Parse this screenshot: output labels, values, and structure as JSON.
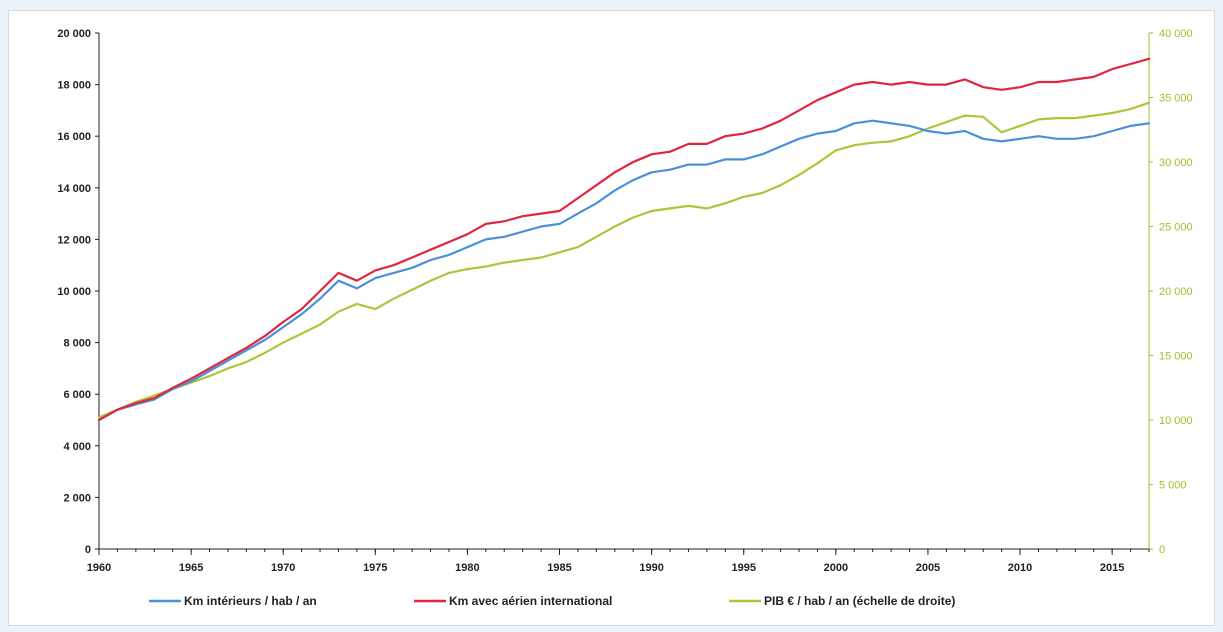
{
  "chart_data": {
    "type": "line",
    "title": "",
    "xlabel": "",
    "ylabel": "",
    "xlim": [
      1960,
      2017
    ],
    "ylim_left": [
      0,
      20000
    ],
    "ylim_right": [
      0,
      40000
    ],
    "grid": false,
    "legend_position": "bottom",
    "x_ticks": [
      1960,
      1965,
      1970,
      1975,
      1980,
      1985,
      1990,
      1995,
      2000,
      2005,
      2010,
      2015
    ],
    "x_tick_labels": [
      "1960",
      "1965",
      "1970",
      "1975",
      "1980",
      "1985",
      "1990",
      "1995",
      "2000",
      "2005",
      "2010",
      "2015"
    ],
    "y_left_ticks": [
      0,
      2000,
      4000,
      6000,
      8000,
      10000,
      12000,
      14000,
      16000,
      18000,
      20000
    ],
    "y_left_tick_labels": [
      "0",
      "2 000",
      "4 000",
      "6 000",
      "8 000",
      "10 000",
      "12 000",
      "14 000",
      "16 000",
      "18 000",
      "20 000"
    ],
    "y_right_ticks": [
      0,
      5000,
      10000,
      15000,
      20000,
      25000,
      30000,
      35000,
      40000
    ],
    "y_right_tick_labels": [
      "0",
      "5 000",
      "10 000",
      "15 000",
      "20 000",
      "25 000",
      "30 000",
      "35 000",
      "40 000"
    ],
    "x": [
      1960,
      1961,
      1962,
      1963,
      1964,
      1965,
      1966,
      1967,
      1968,
      1969,
      1970,
      1971,
      1972,
      1973,
      1974,
      1975,
      1976,
      1977,
      1978,
      1979,
      1980,
      1981,
      1982,
      1983,
      1984,
      1985,
      1986,
      1987,
      1988,
      1989,
      1990,
      1991,
      1992,
      1993,
      1994,
      1995,
      1996,
      1997,
      1998,
      1999,
      2000,
      2001,
      2002,
      2003,
      2004,
      2005,
      2006,
      2007,
      2008,
      2009,
      2010,
      2011,
      2012,
      2013,
      2014,
      2015,
      2016,
      2017
    ],
    "series": [
      {
        "name": "Km intérieurs / hab / an",
        "axis": "left",
        "color": "#4a90d9",
        "values": [
          5000,
          5400,
          5600,
          5800,
          6200,
          6500,
          6900,
          7300,
          7700,
          8100,
          8600,
          9100,
          9700,
          10400,
          10100,
          10500,
          10700,
          10900,
          11200,
          11400,
          11700,
          12000,
          12100,
          12300,
          12500,
          12600,
          13000,
          13400,
          13900,
          14300,
          14600,
          14700,
          14900,
          14900,
          15100,
          15100,
          15300,
          15600,
          15900,
          16100,
          16200,
          16500,
          16600,
          16500,
          16400,
          16200,
          16100,
          16200,
          15900,
          15800,
          15900,
          16000,
          15900,
          15900,
          16000,
          16200,
          16400,
          16500
        ]
      },
      {
        "name": "Km avec aérien international",
        "axis": "left",
        "color": "#e0263e",
        "values": [
          5000,
          5400,
          5650,
          5850,
          6250,
          6600,
          7000,
          7400,
          7800,
          8250,
          8800,
          9300,
          10000,
          10700,
          10400,
          10800,
          11000,
          11300,
          11600,
          11900,
          12200,
          12600,
          12700,
          12900,
          13000,
          13100,
          13600,
          14100,
          14600,
          15000,
          15300,
          15400,
          15700,
          15700,
          16000,
          16100,
          16300,
          16600,
          17000,
          17400,
          17700,
          18000,
          18100,
          18000,
          18100,
          18000,
          18000,
          18200,
          17900,
          17800,
          17900,
          18100,
          18100,
          18200,
          18300,
          18600,
          18800,
          19000
        ]
      },
      {
        "name": "PIB  € / hab / an (échelle de droite)",
        "axis": "right",
        "color": "#a8c83a",
        "values": [
          10200,
          10800,
          11400,
          11900,
          12400,
          12900,
          13400,
          14000,
          14500,
          15200,
          16000,
          16700,
          17400,
          18400,
          19000,
          18600,
          19400,
          20100,
          20800,
          21400,
          21700,
          21900,
          22200,
          22400,
          22600,
          23000,
          23400,
          24200,
          25000,
          25700,
          26200,
          26400,
          26600,
          26400,
          26800,
          27300,
          27600,
          28200,
          29000,
          29900,
          30900,
          31300,
          31500,
          31600,
          32000,
          32600,
          33100,
          33600,
          33500,
          32300,
          32800,
          33300,
          33400,
          33400,
          33600,
          33800,
          34100,
          34600
        ]
      }
    ]
  }
}
